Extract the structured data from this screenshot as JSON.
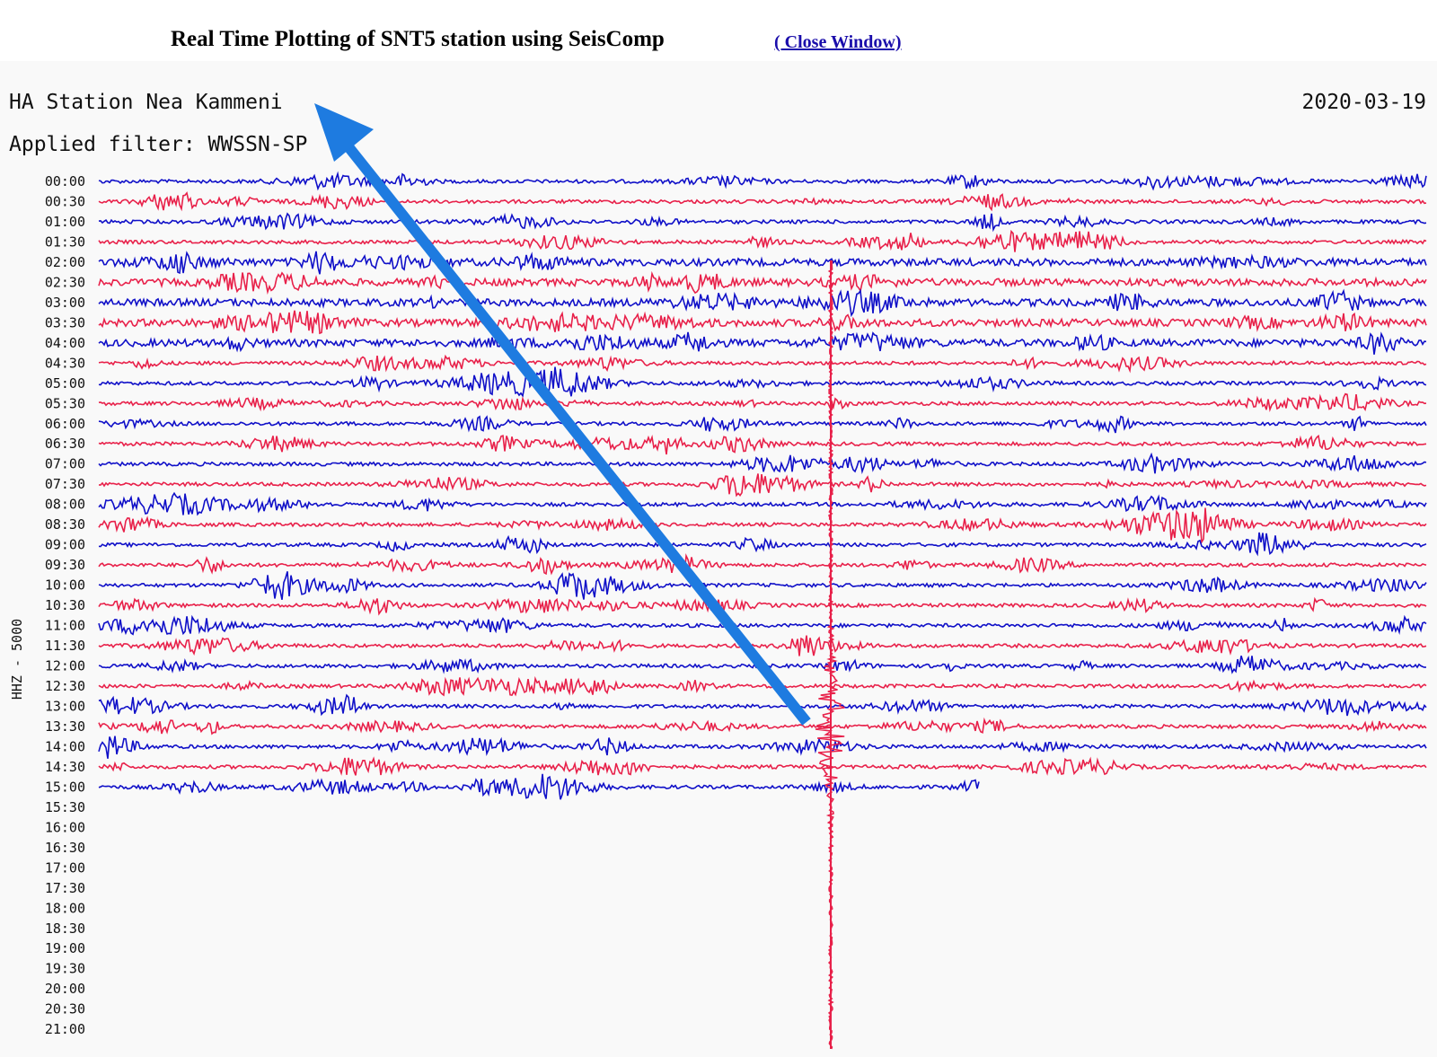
{
  "header": {
    "title": "Real Time Plotting of SNT5 station using SeisComp",
    "link": "( Close Window)"
  },
  "helicorder": {
    "station": "HA Station Nea Kammeni",
    "date": "2020-03-19",
    "filter": "Applied filter: WWSSN-SP",
    "channel": "HHZ - 5000",
    "time_labels": [
      "00:00",
      "00:30",
      "01:00",
      "01:30",
      "02:00",
      "02:30",
      "03:00",
      "03:30",
      "04:00",
      "04:30",
      "05:00",
      "05:30",
      "06:00",
      "06:30",
      "07:00",
      "07:30",
      "08:00",
      "08:30",
      "09:00",
      "09:30",
      "10:00",
      "10:30",
      "11:00",
      "11:30",
      "12:00",
      "12:30",
      "13:00",
      "13:30",
      "14:00",
      "14:30",
      "15:00",
      "15:30",
      "16:00",
      "16:30",
      "17:00",
      "17:30",
      "18:00",
      "18:30",
      "19:00",
      "19:30",
      "20:00",
      "20:30",
      "21:00"
    ]
  }
}
